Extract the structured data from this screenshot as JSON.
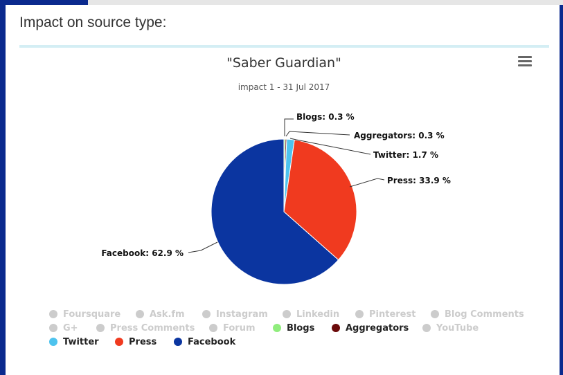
{
  "section_title": "Impact on source type:",
  "menu_icon": "hamburger-menu-icon",
  "chart_data": {
    "type": "pie",
    "title": "\"Saber Guardian\"",
    "subtitle": "impact 1 - 31 Jul 2017",
    "slices": [
      {
        "name": "Blogs",
        "value": 0.3,
        "label": "Blogs: 0.3 %",
        "color": "#90ed7d"
      },
      {
        "name": "Aggregators",
        "value": 0.3,
        "label": "Aggregators: 0.3 %",
        "color": "#6b0a0a"
      },
      {
        "name": "Twitter",
        "value": 1.7,
        "label": "Twitter: 1.7 %",
        "color": "#4ec3ee"
      },
      {
        "name": "Press",
        "value": 33.9,
        "label": "Press: 33.9 %",
        "color": "#f03a1f"
      },
      {
        "name": "Facebook",
        "value": 62.9,
        "label": "Facebook: 62.9 %",
        "color": "#0b35a0"
      }
    ],
    "legend": [
      {
        "name": "Foursquare",
        "color": "#cccccc",
        "active": false
      },
      {
        "name": "Ask.fm",
        "color": "#cccccc",
        "active": false
      },
      {
        "name": "Instagram",
        "color": "#cccccc",
        "active": false
      },
      {
        "name": "Linkedin",
        "color": "#cccccc",
        "active": false
      },
      {
        "name": "Pinterest",
        "color": "#cccccc",
        "active": false
      },
      {
        "name": "Blog Comments",
        "color": "#cccccc",
        "active": false
      },
      {
        "name": "G+",
        "color": "#cccccc",
        "active": false
      },
      {
        "name": "Press Comments",
        "color": "#cccccc",
        "active": false
      },
      {
        "name": "Forum",
        "color": "#cccccc",
        "active": false
      },
      {
        "name": "Blogs",
        "color": "#90ed7d",
        "active": true
      },
      {
        "name": "Aggregators",
        "color": "#6b0a0a",
        "active": true
      },
      {
        "name": "YouTube",
        "color": "#cccccc",
        "active": false
      },
      {
        "name": "Twitter",
        "color": "#4ec3ee",
        "active": true
      },
      {
        "name": "Press",
        "color": "#f03a1f",
        "active": true
      },
      {
        "name": "Facebook",
        "color": "#0b35a0",
        "active": true
      }
    ]
  }
}
